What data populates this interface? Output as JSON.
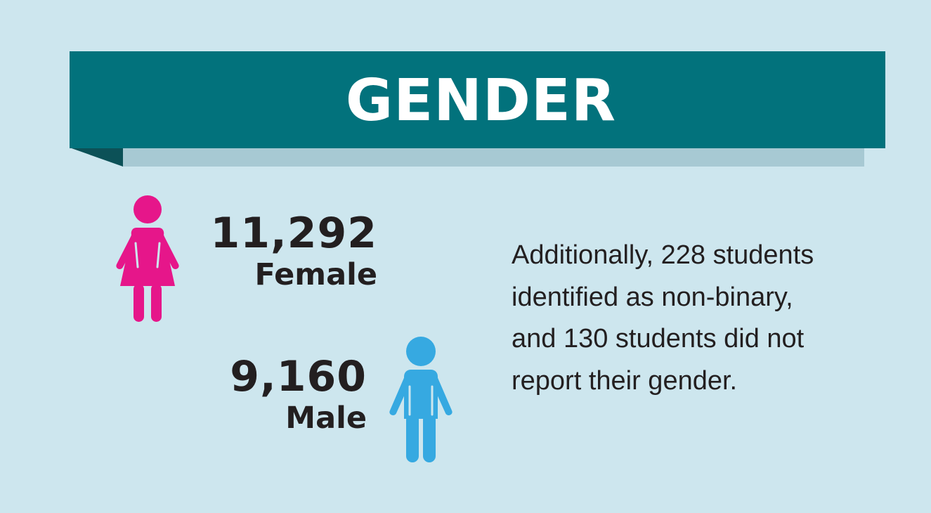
{
  "header": {
    "title": "GENDER"
  },
  "stats": {
    "female": {
      "count": "11,292",
      "label": "Female",
      "icon": "female-person-icon",
      "color": "#e6168a"
    },
    "male": {
      "count": "9,160",
      "label": "Male",
      "icon": "male-person-icon",
      "color": "#36a9e1"
    }
  },
  "note": {
    "text": "Additionally, 228 students identified as non-binary, and 130 students did not report their gender."
  },
  "colors": {
    "background": "#cde6ee",
    "banner": "#02727c",
    "banner_shadow": "#a7c9d3",
    "banner_fold": "#0c5157",
    "text": "#231f20"
  }
}
